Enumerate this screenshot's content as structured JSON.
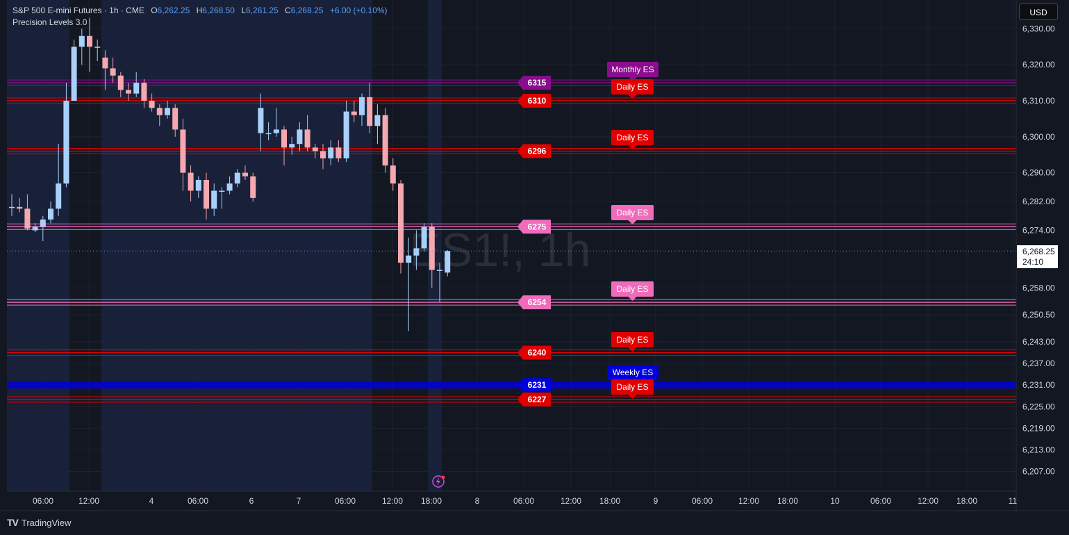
{
  "header": {
    "symbol_title": "S&P 500 E-mini Futures · 1h · CME",
    "open_label": "O",
    "open": "6,262.25",
    "high_label": "H",
    "high": "6,268.50",
    "low_label": "L",
    "low": "6,261.25",
    "close_label": "C",
    "close": "6,268.25",
    "change": "+6.00 (+0.10%)",
    "indicator": "Precision Levels 3.0"
  },
  "currency_button": "USD",
  "watermark": "ES1!, 1h",
  "current_price": {
    "value": "6,268.25",
    "countdown": "24:10",
    "price": 6268.25
  },
  "brand": {
    "logo": "TV",
    "name": "TradingView"
  },
  "colors": {
    "background": "#131722",
    "session_shade": "#1b2542",
    "up_candle": "#a9d0fa",
    "down_candle": "#f5a8b0",
    "daily_level": "#e10000",
    "pink_level": "#f06cbb",
    "weekly_level": "#0000dd",
    "monthly_level": "#8a0d8e"
  },
  "y_axis": {
    "ticks": [
      "6,330.00",
      "6,320.00",
      "6,310.00",
      "6,300.00",
      "6,290.00",
      "6,282.00",
      "6,274.00",
      "6,258.00",
      "6,250.50",
      "6,243.00",
      "6,237.00",
      "6,231.00",
      "6,225.00",
      "6,219.00",
      "6,213.00",
      "6,207.00"
    ]
  },
  "x_axis": {
    "ticks": [
      "06:00",
      "12:00",
      "4",
      "06:00",
      "6",
      "7",
      "06:00",
      "12:00",
      "18:00",
      "8",
      "06:00",
      "12:00",
      "18:00",
      "9",
      "06:00",
      "12:00",
      "18:00",
      "10",
      "06:00",
      "12:00",
      "18:00",
      "11"
    ]
  },
  "levels": [
    {
      "price_label": "6315",
      "type": "monthly"
    },
    {
      "price_label": "6310",
      "type": "daily"
    },
    {
      "price_label": "6296",
      "type": "daily"
    },
    {
      "price_label": "6275",
      "type": "pink"
    },
    {
      "price_label": "6254",
      "type": "pink"
    },
    {
      "price_label": "6240",
      "type": "daily"
    },
    {
      "price_label": "6231",
      "type": "weekly"
    },
    {
      "price_label": "6227",
      "type": "daily"
    }
  ],
  "tags": [
    {
      "text": "Monthly ES",
      "type": "monthly"
    },
    {
      "text": "Daily ES",
      "type": "daily"
    },
    {
      "text": "Daily ES",
      "type": "daily"
    },
    {
      "text": "Daily ES",
      "type": "pink"
    },
    {
      "text": "Daily ES",
      "type": "pink"
    },
    {
      "text": "Daily ES",
      "type": "daily"
    },
    {
      "text": "Weekly ES",
      "type": "weekly"
    },
    {
      "text": "Daily ES",
      "type": "daily"
    }
  ],
  "chart_data": {
    "type": "candlestick",
    "title": "S&P 500 E-mini Futures · 1h · CME",
    "ylim": [
      6204,
      6333
    ],
    "candles": [
      {
        "o": 6280.5,
        "h": 6284,
        "l": 6278,
        "c": 6280.5
      },
      {
        "o": 6280.5,
        "h": 6283,
        "l": 6279,
        "c": 6280
      },
      {
        "o": 6280,
        "h": 6284,
        "l": 6274,
        "c": 6274.5
      },
      {
        "o": 6274,
        "h": 6276,
        "l": 6273.5,
        "c": 6275
      },
      {
        "o": 6275,
        "h": 6278,
        "l": 6271,
        "c": 6277
      },
      {
        "o": 6277,
        "h": 6282,
        "l": 6276,
        "c": 6280
      },
      {
        "o": 6280,
        "h": 6298,
        "l": 6278,
        "c": 6287
      },
      {
        "o": 6287,
        "h": 6315,
        "l": 6286,
        "c": 6310
      },
      {
        "o": 6310,
        "h": 6327,
        "l": 6310,
        "c": 6325
      },
      {
        "o": 6325,
        "h": 6330,
        "l": 6320,
        "c": 6328
      },
      {
        "o": 6328,
        "h": 6333,
        "l": 6318,
        "c": 6325
      },
      {
        "o": 6325,
        "h": 6327,
        "l": 6321,
        "c": 6325
      },
      {
        "o": 6322,
        "h": 6324,
        "l": 6313,
        "c": 6319
      },
      {
        "o": 6319,
        "h": 6322,
        "l": 6315,
        "c": 6317
      },
      {
        "o": 6317,
        "h": 6318,
        "l": 6311,
        "c": 6313
      },
      {
        "o": 6313,
        "h": 6315,
        "l": 6310,
        "c": 6312
      },
      {
        "o": 6312,
        "h": 6318,
        "l": 6311,
        "c": 6315
      },
      {
        "o": 6315,
        "h": 6316,
        "l": 6308,
        "c": 6310
      },
      {
        "o": 6310,
        "h": 6312,
        "l": 6307,
        "c": 6308
      },
      {
        "o": 6308,
        "h": 6309,
        "l": 6303,
        "c": 6306
      },
      {
        "o": 6306,
        "h": 6310,
        "l": 6305,
        "c": 6308
      },
      {
        "o": 6308,
        "h": 6309,
        "l": 6300,
        "c": 6302
      },
      {
        "o": 6302,
        "h": 6305,
        "l": 6285,
        "c": 6290
      },
      {
        "o": 6290,
        "h": 6292,
        "l": 6282,
        "c": 6285
      },
      {
        "o": 6285,
        "h": 6289,
        "l": 6283,
        "c": 6288
      },
      {
        "o": 6288,
        "h": 6290,
        "l": 6277,
        "c": 6280
      },
      {
        "o": 6280,
        "h": 6287,
        "l": 6278,
        "c": 6285
      },
      {
        "o": 6285,
        "h": 6286,
        "l": 6280,
        "c": 6285
      },
      {
        "o": 6285,
        "h": 6289,
        "l": 6284,
        "c": 6287
      },
      {
        "o": 6287,
        "h": 6291,
        "l": 6286,
        "c": 6290
      },
      {
        "o": 6290,
        "h": 6292,
        "l": 6288,
        "c": 6289
      },
      {
        "o": 6289,
        "h": 6290,
        "l": 6282,
        "c": 6283
      },
      {
        "o": 6301,
        "h": 6312,
        "l": 6296,
        "c": 6308
      },
      {
        "o": 6301,
        "h": 6304,
        "l": 6299,
        "c": 6301
      },
      {
        "o": 6301,
        "h": 6308,
        "l": 6300,
        "c": 6302
      },
      {
        "o": 6302,
        "h": 6303,
        "l": 6292,
        "c": 6297
      },
      {
        "o": 6297,
        "h": 6300,
        "l": 6295,
        "c": 6298
      },
      {
        "o": 6298,
        "h": 6304,
        "l": 6296,
        "c": 6302
      },
      {
        "o": 6302,
        "h": 6306,
        "l": 6296,
        "c": 6297
      },
      {
        "o": 6297,
        "h": 6298,
        "l": 6294,
        "c": 6296
      },
      {
        "o": 6296,
        "h": 6298,
        "l": 6291,
        "c": 6294
      },
      {
        "o": 6294,
        "h": 6299,
        "l": 6292,
        "c": 6297
      },
      {
        "o": 6297,
        "h": 6299,
        "l": 6293,
        "c": 6294
      },
      {
        "o": 6294,
        "h": 6310,
        "l": 6293,
        "c": 6307
      },
      {
        "o": 6307,
        "h": 6310,
        "l": 6304,
        "c": 6306
      },
      {
        "o": 6306,
        "h": 6312,
        "l": 6303,
        "c": 6311
      },
      {
        "o": 6311,
        "h": 6315,
        "l": 6301,
        "c": 6303
      },
      {
        "o": 6303,
        "h": 6309,
        "l": 6298,
        "c": 6306
      },
      {
        "o": 6306,
        "h": 6308,
        "l": 6290,
        "c": 6292
      },
      {
        "o": 6292,
        "h": 6294,
        "l": 6285,
        "c": 6287
      },
      {
        "o": 6287,
        "h": 6288,
        "l": 6262,
        "c": 6265
      },
      {
        "o": 6265,
        "h": 6272,
        "l": 6246,
        "c": 6267
      },
      {
        "o": 6267,
        "h": 6274,
        "l": 6263,
        "c": 6269
      },
      {
        "o": 6269,
        "h": 6276,
        "l": 6268,
        "c": 6275
      },
      {
        "o": 6275,
        "h": 6276,
        "l": 6258,
        "c": 6263
      },
      {
        "o": 6263,
        "h": 6265,
        "l": 6254,
        "c": 6263
      },
      {
        "o": 6262.25,
        "h": 6268.5,
        "l": 6261.25,
        "c": 6268.25
      }
    ]
  }
}
